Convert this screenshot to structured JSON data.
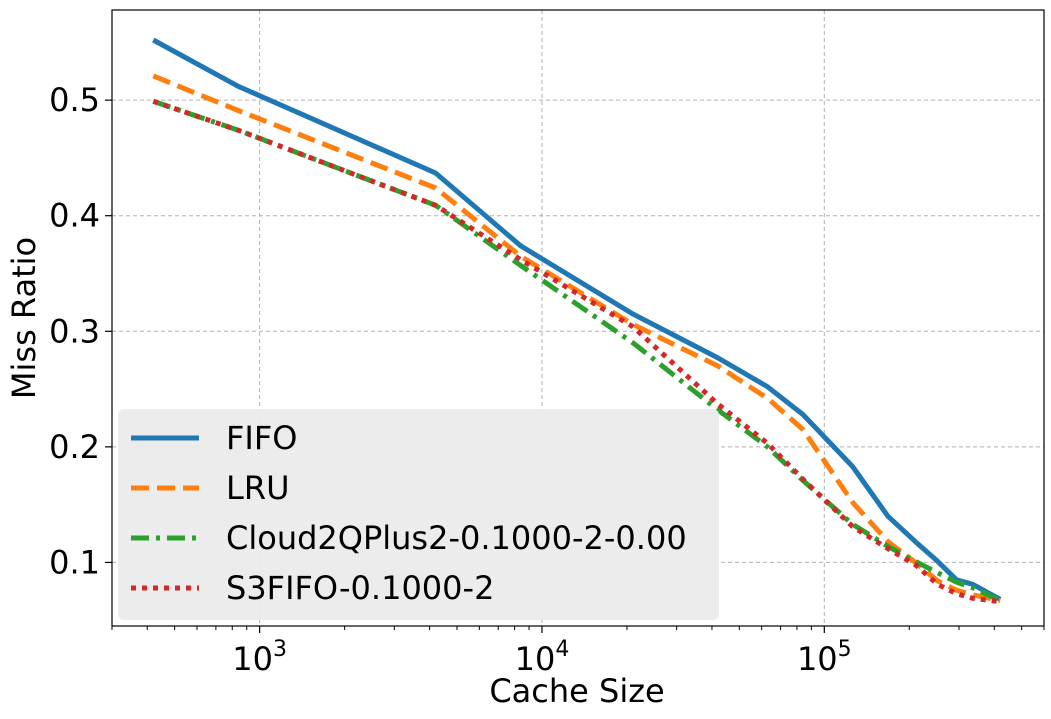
{
  "chart_data": {
    "type": "line",
    "title": "",
    "xlabel": "Cache Size",
    "ylabel": "Miss Ratio",
    "xscale": "log",
    "xlim": [
      300,
      600000
    ],
    "ylim": [
      0.045,
      0.578
    ],
    "grid": true,
    "legend_position": "lower-left",
    "x_ticks": [
      {
        "value": 1000,
        "base": "10",
        "exp": "3"
      },
      {
        "value": 10000,
        "base": "10",
        "exp": "4"
      },
      {
        "value": 100000,
        "base": "10",
        "exp": "5"
      }
    ],
    "y_ticks": [
      {
        "value": 0.1,
        "label": "0.1"
      },
      {
        "value": 0.2,
        "label": "0.2"
      },
      {
        "value": 0.3,
        "label": "0.3"
      },
      {
        "value": 0.4,
        "label": "0.4"
      },
      {
        "value": 0.5,
        "label": "0.5"
      }
    ],
    "series": [
      {
        "name": "FIFO",
        "color": "#1f77b4",
        "dash": "solid",
        "x": [
          420,
          840,
          4200,
          8400,
          21000,
          42000,
          63000,
          84000,
          126000,
          168000,
          210000,
          252000,
          294000,
          336000,
          420000
        ],
        "y": [
          0.552,
          0.512,
          0.437,
          0.374,
          0.315,
          0.277,
          0.252,
          0.228,
          0.183,
          0.14,
          0.118,
          0.101,
          0.085,
          0.081,
          0.068
        ]
      },
      {
        "name": "LRU",
        "color": "#ff7f0e",
        "dash": "dashed",
        "x": [
          420,
          840,
          4200,
          8400,
          21000,
          42000,
          63000,
          84000,
          126000,
          168000,
          210000,
          252000,
          294000,
          336000,
          420000
        ],
        "y": [
          0.521,
          0.491,
          0.424,
          0.365,
          0.306,
          0.27,
          0.242,
          0.215,
          0.152,
          0.118,
          0.1,
          0.084,
          0.076,
          0.072,
          0.067
        ]
      },
      {
        "name": "Cloud2QPlus2-0.1000-2-0.00",
        "color": "#2ca02c",
        "dash": "dashdot",
        "x": [
          420,
          840,
          4200,
          8400,
          21000,
          42000,
          63000,
          84000,
          126000,
          168000,
          210000,
          252000,
          294000,
          336000,
          420000
        ],
        "y": [
          0.499,
          0.474,
          0.409,
          0.357,
          0.29,
          0.232,
          0.2,
          0.171,
          0.133,
          0.114,
          0.101,
          0.091,
          0.083,
          0.078,
          0.067
        ]
      },
      {
        "name": "S3FIFO-0.1000-2",
        "color": "#d62728",
        "dash": "dotted",
        "x": [
          420,
          840,
          4200,
          8400,
          21000,
          42000,
          63000,
          84000,
          126000,
          168000,
          210000,
          252000,
          294000,
          336000,
          420000
        ],
        "y": [
          0.499,
          0.474,
          0.409,
          0.362,
          0.304,
          0.237,
          0.203,
          0.172,
          0.131,
          0.112,
          0.098,
          0.081,
          0.073,
          0.069,
          0.066
        ]
      }
    ]
  }
}
